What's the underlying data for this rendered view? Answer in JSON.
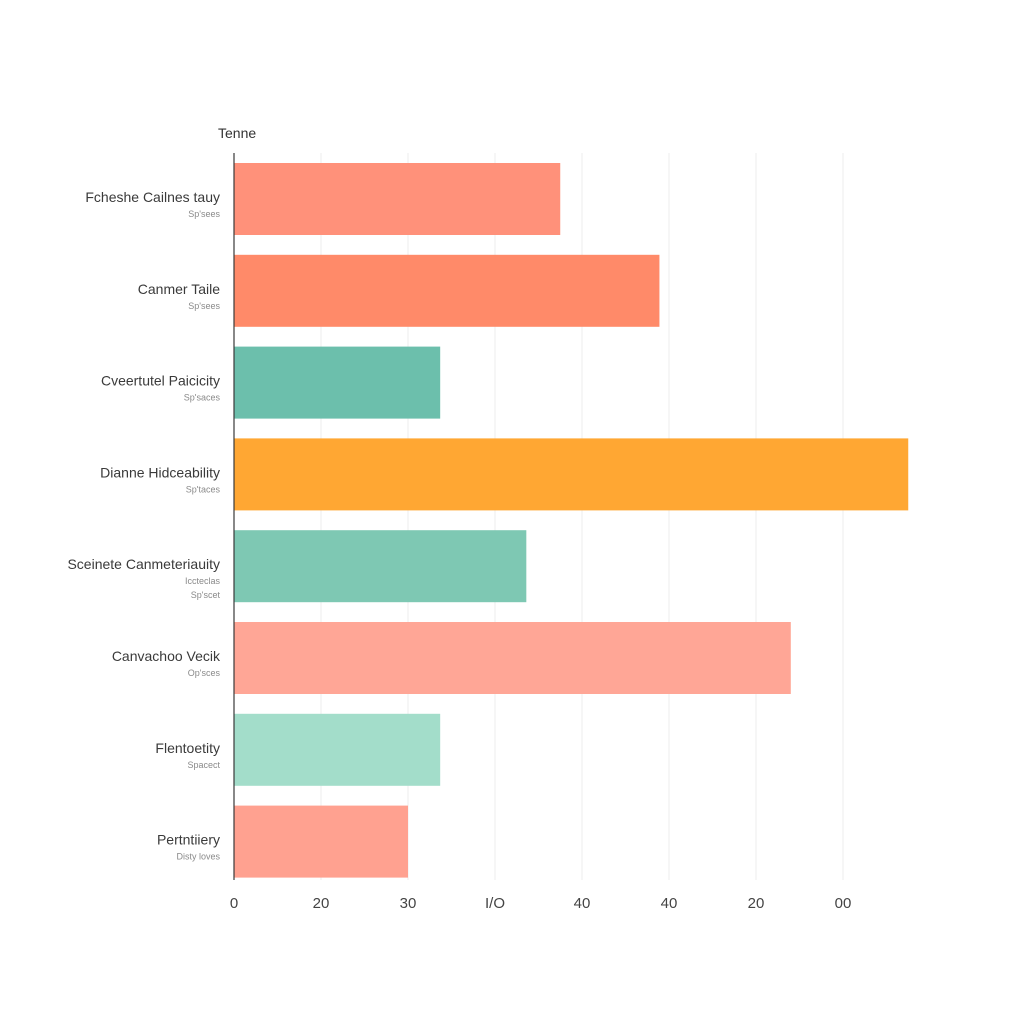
{
  "chart_data": {
    "type": "bar",
    "orientation": "horizontal",
    "title": "Tenne",
    "grid": true,
    "xlim": [
      0,
      80
    ],
    "x_ticks": [
      "0",
      "20",
      "30",
      "I/O",
      "40",
      "40",
      "20",
      "00"
    ],
    "x_tick_values": [
      0,
      10,
      20,
      30,
      40,
      50,
      60,
      70
    ],
    "categories": [
      {
        "label": "Fcheshe Cailnes tauy",
        "sublabels": [
          "Sp'sees"
        ],
        "value": 37.5,
        "color": "#FF917A"
      },
      {
        "label": "Canmer Taile",
        "sublabels": [
          "Sp'sees"
        ],
        "value": 48.9,
        "color": "#FF8A69"
      },
      {
        "label": "Cveertutel Paicicity",
        "sublabels": [
          "Sp'saces"
        ],
        "value": 23.7,
        "color": "#6CBFAC"
      },
      {
        "label": "Dianne Hidceability",
        "sublabels": [
          "Sp'taces"
        ],
        "value": 77.5,
        "color": "#FFA733"
      },
      {
        "label": "Sceinete Canmeteriauity",
        "sublabels": [
          "Iccteclas",
          "Sp'scet"
        ],
        "value": 33.6,
        "color": "#7EC8B3"
      },
      {
        "label": "Canvachoo Vecik",
        "sublabels": [
          "Op'sces"
        ],
        "value": 64.0,
        "color": "#FFA696"
      },
      {
        "label": "Flentoetity",
        "sublabels": [
          "Spacect"
        ],
        "value": 23.7,
        "color": "#A3DDCA"
      },
      {
        "label": "Pertntiiery",
        "sublabels": [
          "Disty loves"
        ],
        "value": 20.0,
        "color": "#FFA190"
      }
    ]
  }
}
